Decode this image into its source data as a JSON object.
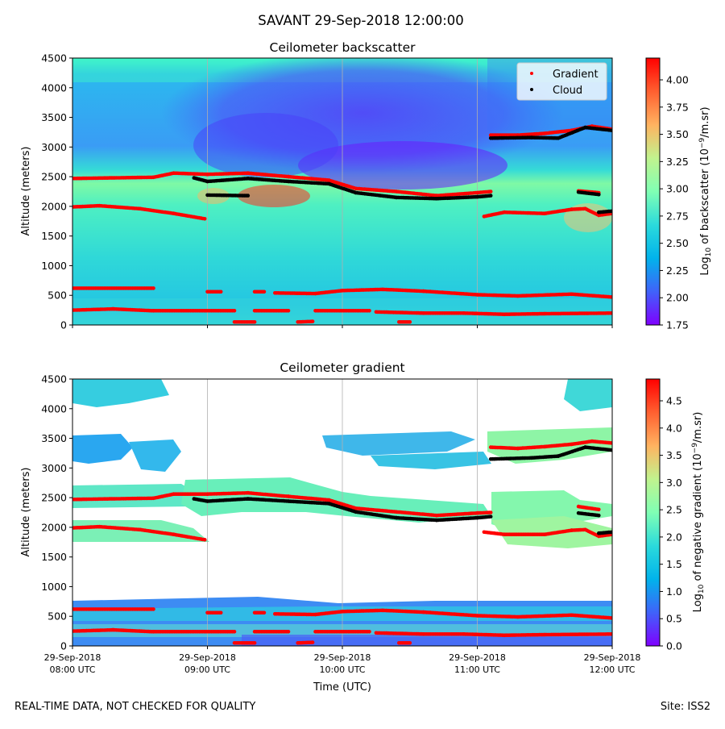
{
  "suptitle": "SAVANT 29-Sep-2018 12:00:00",
  "footer_left": "REAL-TIME DATA, NOT CHECKED FOR QUALITY",
  "footer_right": "Site: ISS2",
  "x_axis": {
    "label": "Time (UTC)",
    "ticks": [
      {
        "date": "29-Sep-2018",
        "time": "08:00 UTC",
        "t": 8.0
      },
      {
        "date": "29-Sep-2018",
        "time": "09:00 UTC",
        "t": 9.0
      },
      {
        "date": "29-Sep-2018",
        "time": "10:00 UTC",
        "t": 10.0
      },
      {
        "date": "29-Sep-2018",
        "time": "11:00 UTC",
        "t": 11.0
      },
      {
        "date": "29-Sep-2018",
        "time": "12:00 UTC",
        "t": 12.0
      }
    ]
  },
  "colors": {
    "gradient_marker": "#ff0000",
    "cloud_marker": "#000000",
    "colormap": [
      "#7f00ff",
      "#4062fa",
      "#01b3eb",
      "#41f7c8",
      "#80ffb4",
      "#c1f38e",
      "#ffb360",
      "#ff6030",
      "#ff0000"
    ]
  },
  "chart_data": [
    {
      "type": "heatmap",
      "title": "Ceilometer backscatter",
      "xlabel": "",
      "ylabel": "Altitude (meters)",
      "ylim": [
        0,
        4500
      ],
      "yticks": [
        0,
        500,
        1000,
        1500,
        2000,
        2500,
        3000,
        3500,
        4000,
        4500
      ],
      "xlim_utc_hours": [
        8,
        12
      ],
      "grid": "vertical lines at x ticks",
      "legend": {
        "position": "top-right",
        "entries": [
          {
            "label": "Gradient",
            "color": "#ff0000",
            "marker": "dot"
          },
          {
            "label": "Cloud",
            "color": "#000000",
            "marker": "dot"
          }
        ]
      },
      "colorbar": {
        "label_prefix": "Log",
        "label_sub": "10",
        "label_mid": " of backscatter (10",
        "label_sup": "−9",
        "label_suffix": "/m.sr)",
        "range": [
          1.75,
          4.2
        ],
        "ticks": [
          "1.75",
          "2.00",
          "2.25",
          "2.50",
          "2.75",
          "3.00",
          "3.25",
          "3.50",
          "3.75",
          "4.00"
        ]
      },
      "series": [
        {
          "name": "Gradient",
          "points": [
            [
              8.0,
              2470
            ],
            [
              8.6,
              2490
            ],
            [
              8.75,
              2560
            ],
            [
              9.0,
              2540
            ],
            [
              9.3,
              2560
            ],
            [
              9.6,
              2500
            ],
            [
              9.9,
              2440
            ],
            [
              10.1,
              2300
            ],
            [
              10.4,
              2250
            ],
            [
              10.7,
              2180
            ],
            [
              11.0,
              2230
            ],
            [
              11.1,
              2250
            ]
          ]
        },
        {
          "name": "Gradient",
          "points": [
            [
              11.1,
              3200
            ],
            [
              11.3,
              3200
            ],
            [
              11.5,
              3230
            ],
            [
              11.7,
              3280
            ],
            [
              11.85,
              3350
            ],
            [
              12.0,
              3300
            ]
          ]
        },
        {
          "name": "Gradient",
          "points": [
            [
              8.0,
              1990
            ],
            [
              8.2,
              2010
            ],
            [
              8.5,
              1960
            ],
            [
              8.75,
              1880
            ],
            [
              8.98,
              1790
            ]
          ]
        },
        {
          "name": "Gradient",
          "points": [
            [
              11.05,
              1830
            ],
            [
              11.2,
              1900
            ],
            [
              11.5,
              1880
            ],
            [
              11.7,
              1950
            ],
            [
              11.8,
              1960
            ],
            [
              11.9,
              1850
            ],
            [
              12.0,
              1880
            ]
          ]
        },
        {
          "name": "Gradient",
          "points": [
            [
              11.75,
              2260
            ],
            [
              11.9,
              2230
            ]
          ]
        },
        {
          "name": "Gradient",
          "points": [
            [
              8.0,
              620
            ],
            [
              8.6,
              620
            ]
          ]
        },
        {
          "name": "Gradient",
          "points": [
            [
              9.0,
              560
            ],
            [
              9.1,
              560
            ]
          ]
        },
        {
          "name": "Gradient",
          "points": [
            [
              9.35,
              560
            ],
            [
              9.42,
              560
            ]
          ]
        },
        {
          "name": "Gradient",
          "points": [
            [
              9.5,
              540
            ],
            [
              9.8,
              530
            ],
            [
              10.0,
              580
            ],
            [
              10.3,
              600
            ],
            [
              10.6,
              570
            ],
            [
              11.0,
              510
            ],
            [
              11.3,
              490
            ],
            [
              11.7,
              520
            ],
            [
              12.0,
              470
            ]
          ]
        },
        {
          "name": "Gradient",
          "points": [
            [
              8.0,
              250
            ],
            [
              8.3,
              270
            ],
            [
              8.6,
              240
            ],
            [
              9.2,
              240
            ]
          ]
        },
        {
          "name": "Gradient",
          "points": [
            [
              9.35,
              240
            ],
            [
              9.6,
              240
            ]
          ]
        },
        {
          "name": "Gradient",
          "points": [
            [
              9.8,
              240
            ],
            [
              10.2,
              240
            ]
          ]
        },
        {
          "name": "Gradient",
          "points": [
            [
              10.25,
              220
            ],
            [
              10.6,
              200
            ],
            [
              10.9,
              200
            ],
            [
              11.2,
              180
            ],
            [
              11.5,
              190
            ],
            [
              12.0,
              200
            ]
          ]
        },
        {
          "name": "Gradient",
          "points": [
            [
              9.2,
              50
            ],
            [
              9.35,
              50
            ]
          ]
        },
        {
          "name": "Gradient",
          "points": [
            [
              9.67,
              50
            ],
            [
              9.78,
              60
            ]
          ]
        },
        {
          "name": "Gradient",
          "points": [
            [
              10.42,
              50
            ],
            [
              10.5,
              50
            ]
          ]
        },
        {
          "name": "Cloud",
          "points": [
            [
              8.9,
              2480
            ],
            [
              9.0,
              2420
            ],
            [
              9.3,
              2470
            ],
            [
              9.6,
              2420
            ],
            [
              9.9,
              2380
            ],
            [
              10.1,
              2230
            ],
            [
              10.4,
              2150
            ],
            [
              10.7,
              2130
            ],
            [
              11.0,
              2160
            ],
            [
              11.1,
              2180
            ]
          ]
        },
        {
          "name": "Cloud",
          "points": [
            [
              11.1,
              3150
            ],
            [
              11.4,
              3160
            ],
            [
              11.6,
              3150
            ],
            [
              11.8,
              3330
            ],
            [
              12.0,
              3280
            ]
          ]
        },
        {
          "name": "Cloud",
          "points": [
            [
              9.0,
              2190
            ],
            [
              9.3,
              2180
            ]
          ]
        },
        {
          "name": "Cloud",
          "points": [
            [
              11.75,
              2240
            ],
            [
              11.9,
              2200
            ]
          ]
        },
        {
          "name": "Cloud",
          "points": [
            [
              11.9,
              1900
            ],
            [
              12.0,
              1920
            ]
          ]
        }
      ]
    },
    {
      "type": "heatmap",
      "title": "Ceilometer gradient",
      "xlabel": "Time (UTC)",
      "ylabel": "Altitude (meters)",
      "ylim": [
        0,
        4500
      ],
      "yticks": [
        0,
        500,
        1000,
        1500,
        2000,
        2500,
        3000,
        3500,
        4000,
        4500
      ],
      "xlim_utc_hours": [
        8,
        12
      ],
      "grid": "vertical lines at x ticks",
      "colorbar": {
        "label_prefix": "Log",
        "label_sub": "10",
        "label_mid": " of negative gradient (10",
        "label_sup": "−9",
        "label_suffix": "/m.sr)",
        "range": [
          0,
          4.9
        ],
        "ticks": [
          "0.0",
          "0.5",
          "1.0",
          "1.5",
          "2.0",
          "2.5",
          "3.0",
          "3.5",
          "4.0",
          "4.5"
        ]
      },
      "series": [
        {
          "name": "Gradient",
          "points": [
            [
              8.0,
              2470
            ],
            [
              8.6,
              2490
            ],
            [
              8.75,
              2560
            ],
            [
              9.0,
              2560
            ],
            [
              9.3,
              2580
            ],
            [
              9.6,
              2520
            ],
            [
              9.9,
              2460
            ],
            [
              10.1,
              2320
            ],
            [
              10.4,
              2260
            ],
            [
              10.7,
              2200
            ],
            [
              11.0,
              2240
            ],
            [
              11.1,
              2250
            ]
          ]
        },
        {
          "name": "Gradient",
          "points": [
            [
              11.1,
              3350
            ],
            [
              11.3,
              3330
            ],
            [
              11.5,
              3360
            ],
            [
              11.7,
              3400
            ],
            [
              11.85,
              3450
            ],
            [
              12.0,
              3420
            ]
          ]
        },
        {
          "name": "Gradient",
          "points": [
            [
              8.0,
              1990
            ],
            [
              8.2,
              2010
            ],
            [
              8.5,
              1960
            ],
            [
              8.75,
              1880
            ],
            [
              8.98,
              1790
            ]
          ]
        },
        {
          "name": "Gradient",
          "points": [
            [
              11.05,
              1920
            ],
            [
              11.2,
              1880
            ],
            [
              11.5,
              1880
            ],
            [
              11.7,
              1950
            ],
            [
              11.8,
              1960
            ],
            [
              11.9,
              1850
            ],
            [
              12.0,
              1880
            ]
          ]
        },
        {
          "name": "Gradient",
          "points": [
            [
              11.75,
              2350
            ],
            [
              11.9,
              2300
            ]
          ]
        },
        {
          "name": "Gradient",
          "points": [
            [
              8.0,
              620
            ],
            [
              8.6,
              620
            ]
          ]
        },
        {
          "name": "Gradient",
          "points": [
            [
              9.0,
              560
            ],
            [
              9.1,
              560
            ]
          ]
        },
        {
          "name": "Gradient",
          "points": [
            [
              9.35,
              560
            ],
            [
              9.42,
              560
            ]
          ]
        },
        {
          "name": "Gradient",
          "points": [
            [
              9.5,
              540
            ],
            [
              9.8,
              530
            ],
            [
              10.0,
              580
            ],
            [
              10.3,
              600
            ],
            [
              10.6,
              570
            ],
            [
              11.0,
              510
            ],
            [
              11.3,
              490
            ],
            [
              11.7,
              520
            ],
            [
              12.0,
              470
            ]
          ]
        },
        {
          "name": "Gradient",
          "points": [
            [
              8.0,
              250
            ],
            [
              8.3,
              270
            ],
            [
              8.6,
              240
            ],
            [
              9.2,
              240
            ]
          ]
        },
        {
          "name": "Gradient",
          "points": [
            [
              9.35,
              240
            ],
            [
              9.6,
              240
            ]
          ]
        },
        {
          "name": "Gradient",
          "points": [
            [
              9.8,
              240
            ],
            [
              10.2,
              240
            ]
          ]
        },
        {
          "name": "Gradient",
          "points": [
            [
              10.25,
              220
            ],
            [
              10.6,
              200
            ],
            [
              10.9,
              200
            ],
            [
              11.2,
              180
            ],
            [
              11.5,
              190
            ],
            [
              12.0,
              200
            ]
          ]
        },
        {
          "name": "Gradient",
          "points": [
            [
              9.2,
              50
            ],
            [
              9.35,
              50
            ]
          ]
        },
        {
          "name": "Gradient",
          "points": [
            [
              9.67,
              50
            ],
            [
              9.78,
              60
            ]
          ]
        },
        {
          "name": "Gradient",
          "points": [
            [
              10.42,
              50
            ],
            [
              10.5,
              50
            ]
          ]
        },
        {
          "name": "Cloud",
          "points": [
            [
              8.9,
              2480
            ],
            [
              9.0,
              2440
            ],
            [
              9.3,
              2480
            ],
            [
              9.6,
              2440
            ],
            [
              9.9,
              2400
            ],
            [
              10.1,
              2260
            ],
            [
              10.4,
              2160
            ],
            [
              10.7,
              2120
            ],
            [
              11.0,
              2160
            ],
            [
              11.1,
              2180
            ]
          ]
        },
        {
          "name": "Cloud",
          "points": [
            [
              11.1,
              3150
            ],
            [
              11.4,
              3170
            ],
            [
              11.6,
              3200
            ],
            [
              11.8,
              3350
            ],
            [
              12.0,
              3300
            ]
          ]
        },
        {
          "name": "Cloud",
          "points": [
            [
              11.75,
              2240
            ],
            [
              11.9,
              2200
            ]
          ]
        },
        {
          "name": "Cloud",
          "points": [
            [
              11.9,
              1900
            ],
            [
              12.0,
              1920
            ]
          ]
        }
      ]
    }
  ]
}
